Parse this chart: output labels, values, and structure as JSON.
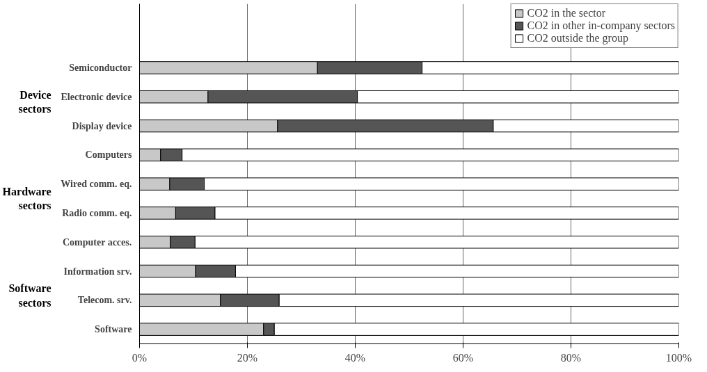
{
  "chart_data": {
    "type": "bar",
    "orientation": "horizontal",
    "stacked": true,
    "categories": [
      "Semiconductor",
      "Electronic device",
      "Display device",
      "Computers",
      "Wired comm. eq.",
      "Radio comm. eq.",
      "Computer acces.",
      "Information srv.",
      "Telecom. srv.",
      "Software"
    ],
    "series": [
      {
        "name": "CO2 in the sector",
        "color": "#c8c8c8",
        "values": [
          33,
          12.7,
          25.6,
          3.9,
          5.6,
          6.7,
          5.7,
          10.4,
          15,
          23
        ]
      },
      {
        "name": "CO2 in other in-company sectors",
        "color": "#555555",
        "values": [
          19.4,
          27.7,
          40,
          4,
          6.4,
          7.3,
          4.6,
          7.4,
          10.9,
          2
        ]
      },
      {
        "name": "CO2 outside the group",
        "color": "#ffffff",
        "values": [
          47.6,
          59.6,
          34.4,
          92.1,
          88,
          86,
          89.7,
          82.2,
          74.1,
          75
        ]
      }
    ],
    "xlim": [
      0,
      100
    ],
    "xticks": [
      {
        "value": 0,
        "label": "0%"
      },
      {
        "value": 20,
        "label": "20%"
      },
      {
        "value": 40,
        "label": "40%"
      },
      {
        "value": 60,
        "label": "60%"
      },
      {
        "value": 80,
        "label": "80%"
      },
      {
        "value": 100,
        "label": "100%"
      }
    ],
    "grid": "x",
    "legend": "top right",
    "annotations": [
      "Device sectors",
      "Hardware sectors",
      "Software sectors"
    ]
  }
}
